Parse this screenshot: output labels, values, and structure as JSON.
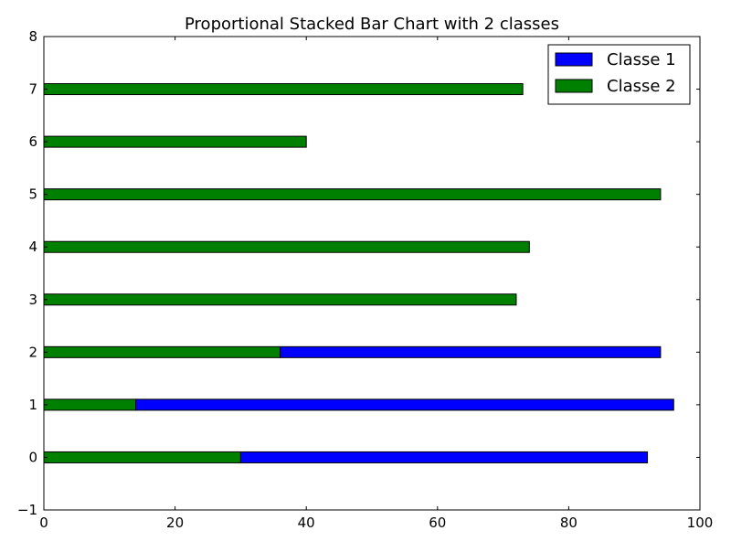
{
  "chart_data": {
    "type": "bar",
    "orientation": "horizontal",
    "stacked": true,
    "title": "Proportional Stacked Bar Chart with 2 classes",
    "xlabel": "",
    "ylabel": "",
    "xlim": [
      0,
      100
    ],
    "ylim": [
      -1,
      8
    ],
    "x_ticks": [
      0,
      20,
      40,
      60,
      80,
      100
    ],
    "y_ticks": [
      -1,
      0,
      1,
      2,
      3,
      4,
      5,
      6,
      7,
      8
    ],
    "x_tick_labels": [
      "0",
      "20",
      "40",
      "60",
      "80",
      "100"
    ],
    "y_tick_labels": [
      "−1",
      "0",
      "1",
      "2",
      "3",
      "4",
      "5",
      "6",
      "7",
      "8"
    ],
    "categories": [
      0,
      1,
      2,
      3,
      4,
      5,
      6,
      7
    ],
    "grid": false,
    "legend_position": "top-right",
    "series": [
      {
        "name": "Classe 1",
        "color": "#0000ff",
        "values": [
          62,
          82,
          58,
          0,
          0,
          0,
          0,
          0
        ]
      },
      {
        "name": "Classe 2",
        "color": "#008000",
        "values": [
          30,
          14,
          36,
          72,
          74,
          94,
          40,
          73
        ]
      }
    ],
    "stack_order": [
      "Classe 2",
      "Classe 1"
    ]
  }
}
